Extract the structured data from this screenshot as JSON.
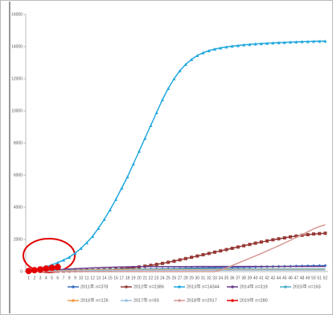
{
  "chart_data": {
    "type": "line",
    "categories": [
      1,
      2,
      3,
      4,
      5,
      6,
      7,
      8,
      9,
      10,
      11,
      12,
      13,
      14,
      15,
      16,
      17,
      18,
      19,
      20,
      21,
      22,
      23,
      24,
      25,
      26,
      27,
      28,
      29,
      30,
      31,
      32,
      33,
      34,
      35,
      36,
      37,
      38,
      39,
      40,
      41,
      42,
      43,
      44,
      45,
      46,
      47,
      48,
      49,
      50,
      51,
      52
    ],
    "ylim": [
      0,
      16000
    ],
    "yticks": [
      0,
      2000,
      4000,
      6000,
      8000,
      10000,
      12000,
      14000,
      16000
    ],
    "grid": false,
    "series": [
      {
        "name": "2011年 n=378",
        "color": "#3a6fc4",
        "marker": "diamond",
        "values": [
          7,
          15,
          22,
          29,
          36,
          44,
          51,
          58,
          65,
          73,
          80,
          87,
          95,
          102,
          109,
          116,
          124,
          131,
          138,
          145,
          153,
          160,
          167,
          174,
          182,
          189,
          196,
          204,
          211,
          218,
          225,
          233,
          240,
          247,
          254,
          262,
          269,
          276,
          283,
          291,
          298,
          305,
          313,
          320,
          327,
          334,
          342,
          349,
          356,
          363,
          371,
          378
        ]
      },
      {
        "name": "2012年 n=2386",
        "color": "#963a36",
        "marker": "square",
        "values": [
          5,
          10,
          15,
          20,
          25,
          30,
          35,
          40,
          50,
          60,
          70,
          80,
          95,
          110,
          130,
          150,
          180,
          210,
          250,
          290,
          340,
          390,
          450,
          510,
          580,
          650,
          730,
          810,
          890,
          970,
          1050,
          1130,
          1210,
          1290,
          1370,
          1450,
          1530,
          1610,
          1690,
          1770,
          1840,
          1910,
          1980,
          2040,
          2100,
          2160,
          2210,
          2260,
          2300,
          2340,
          2365,
          2386
        ]
      },
      {
        "name": "2013年 n=14344",
        "color": "#22a8de",
        "marker": "triangle",
        "values": [
          50,
          120,
          200,
          300,
          420,
          560,
          720,
          900,
          1150,
          1450,
          1800,
          2200,
          2700,
          3250,
          3850,
          4500,
          5200,
          5900,
          6700,
          7500,
          8300,
          9100,
          9900,
          10700,
          11400,
          12000,
          12500,
          12900,
          13200,
          13450,
          13620,
          13750,
          13850,
          13920,
          13980,
          14030,
          14070,
          14110,
          14140,
          14170,
          14190,
          14210,
          14230,
          14250,
          14265,
          14280,
          14295,
          14310,
          14320,
          14330,
          14338,
          14344
        ]
      },
      {
        "name": "2014年 n=319",
        "color": "#6b3f8c",
        "marker": "none",
        "values": [
          20,
          40,
          60,
          80,
          100,
          120,
          140,
          160,
          180,
          200,
          215,
          230,
          245,
          260,
          270,
          280,
          290,
          298,
          305,
          310,
          311,
          312,
          313,
          313,
          314,
          314,
          315,
          315,
          315,
          316,
          316,
          316,
          317,
          317,
          317,
          317,
          318,
          318,
          318,
          318,
          318,
          319,
          319,
          319,
          319,
          319,
          319,
          319,
          319,
          319,
          319,
          319
        ]
      },
      {
        "name": "2015年 n=163",
        "color": "#4bb0c8",
        "marker": "none",
        "values": [
          10,
          20,
          30,
          40,
          50,
          60,
          70,
          80,
          90,
          100,
          108,
          116,
          124,
          130,
          136,
          142,
          146,
          150,
          153,
          156,
          157,
          158,
          158,
          159,
          159,
          160,
          160,
          160,
          161,
          161,
          161,
          161,
          162,
          162,
          162,
          162,
          162,
          162,
          163,
          163,
          163,
          163,
          163,
          163,
          163,
          163,
          163,
          163,
          163,
          163,
          163,
          163
        ]
      },
      {
        "name": "2016年 n=126",
        "color": "#f39a4a",
        "marker": "none",
        "values": [
          8,
          16,
          24,
          32,
          40,
          48,
          56,
          64,
          72,
          80,
          86,
          92,
          98,
          102,
          106,
          110,
          113,
          116,
          118,
          120,
          121,
          121,
          122,
          122,
          122,
          123,
          123,
          123,
          123,
          124,
          124,
          124,
          124,
          124,
          124,
          125,
          125,
          125,
          125,
          125,
          125,
          126,
          126,
          126,
          126,
          126,
          126,
          126,
          126,
          126,
          126,
          126
        ]
      },
      {
        "name": "2017年 n=93",
        "color": "#9cc2e4",
        "marker": "none",
        "values": [
          5,
          10,
          15,
          20,
          25,
          30,
          35,
          40,
          45,
          50,
          55,
          60,
          64,
          68,
          72,
          75,
          78,
          81,
          83,
          85,
          86,
          86,
          87,
          87,
          88,
          88,
          88,
          89,
          89,
          89,
          90,
          90,
          90,
          90,
          90,
          90,
          91,
          91,
          91,
          91,
          91,
          91,
          92,
          92,
          92,
          92,
          92,
          93,
          93,
          93,
          93,
          93
        ]
      },
      {
        "name": "2018年 n=2917",
        "color": "#d59894",
        "marker": "none",
        "values": [
          0,
          0,
          0,
          0,
          0,
          0,
          0,
          0,
          0,
          0,
          0,
          0,
          0,
          0,
          0,
          0,
          0,
          0,
          0,
          0,
          0,
          0,
          0,
          0,
          0,
          0,
          0,
          0,
          0,
          0,
          0,
          0,
          0,
          100,
          230,
          380,
          530,
          680,
          830,
          980,
          1130,
          1290,
          1450,
          1610,
          1780,
          1950,
          2120,
          2300,
          2480,
          2660,
          2800,
          2917
        ]
      },
      {
        "name": "2019年 n=280",
        "color": "#e40000",
        "marker": "circle",
        "values": [
          40,
          90,
          140,
          190,
          240,
          280,
          null,
          null,
          null,
          null,
          null,
          null,
          null,
          null,
          null,
          null,
          null,
          null,
          null,
          null,
          null,
          null,
          null,
          null,
          null,
          null,
          null,
          null,
          null,
          null,
          null,
          null,
          null,
          null,
          null,
          null,
          null,
          null,
          null,
          null,
          null,
          null,
          null,
          null,
          null,
          null,
          null,
          null,
          null,
          null,
          null,
          null
        ]
      }
    ]
  }
}
